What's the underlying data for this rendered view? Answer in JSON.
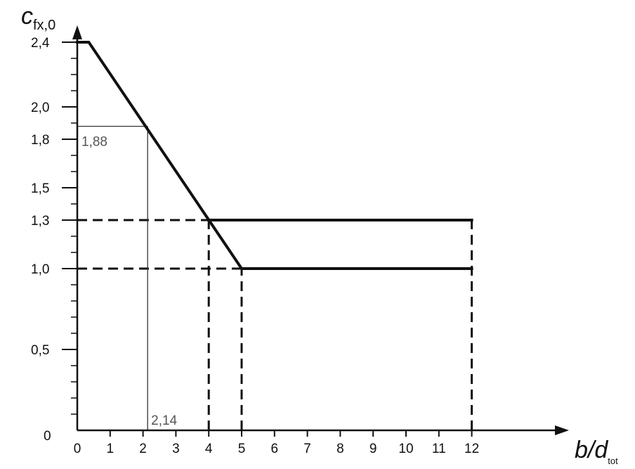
{
  "chart_data": {
    "type": "line",
    "title": "",
    "xlabel": {
      "main": "b/d",
      "sub": "tot"
    },
    "ylabel": {
      "main": "c",
      "sub": "fx,0"
    },
    "xlim": [
      0,
      15
    ],
    "ylim": [
      0,
      2.6
    ],
    "x_ticks": [
      0,
      1,
      2,
      3,
      4,
      5,
      6,
      7,
      8,
      9,
      10,
      11,
      12
    ],
    "x_tick_labels": [
      "0",
      "1",
      "2",
      "3",
      "4",
      "5",
      "6",
      "7",
      "8",
      "9",
      "10",
      "11",
      "12"
    ],
    "y_ticks_labeled": [
      0,
      0.5,
      1.0,
      1.3,
      1.5,
      1.8,
      2.0,
      2.4
    ],
    "y_tick_labels": [
      "0",
      "0,5",
      "1,0",
      "1,3",
      "1,5",
      "1,8",
      "2,0",
      "2,4"
    ],
    "y_minor_step": 0.1,
    "grid": false,
    "series": [
      {
        "style": "solid",
        "points": [
          [
            0,
            2.4
          ],
          [
            0.35,
            2.4
          ],
          [
            5,
            1.0
          ],
          [
            12,
            1.0
          ]
        ]
      },
      {
        "style": "solid",
        "points": [
          [
            4,
            1.3
          ],
          [
            12,
            1.3
          ]
        ]
      }
    ],
    "reference_lines": [
      {
        "style": "dashed",
        "points": [
          [
            0,
            1.3
          ],
          [
            4,
            1.3
          ]
        ]
      },
      {
        "style": "dashed",
        "points": [
          [
            0,
            1.0
          ],
          [
            5,
            1.0
          ]
        ]
      },
      {
        "style": "dashed",
        "points": [
          [
            4,
            0
          ],
          [
            4,
            1.3
          ]
        ]
      },
      {
        "style": "dashed",
        "points": [
          [
            5,
            0
          ],
          [
            5,
            1.0
          ]
        ]
      },
      {
        "style": "dashed",
        "points": [
          [
            12,
            0
          ],
          [
            12,
            1.3
          ]
        ]
      },
      {
        "style": "thin",
        "points": [
          [
            0,
            1.88
          ],
          [
            2.14,
            1.88
          ]
        ]
      },
      {
        "style": "thin",
        "points": [
          [
            2.14,
            0
          ],
          [
            2.14,
            1.88
          ]
        ]
      }
    ],
    "annotations": [
      {
        "text": "1,88",
        "x": 0,
        "y": 1.88
      },
      {
        "text": "2,14",
        "x": 2.14,
        "y": 0
      }
    ]
  }
}
